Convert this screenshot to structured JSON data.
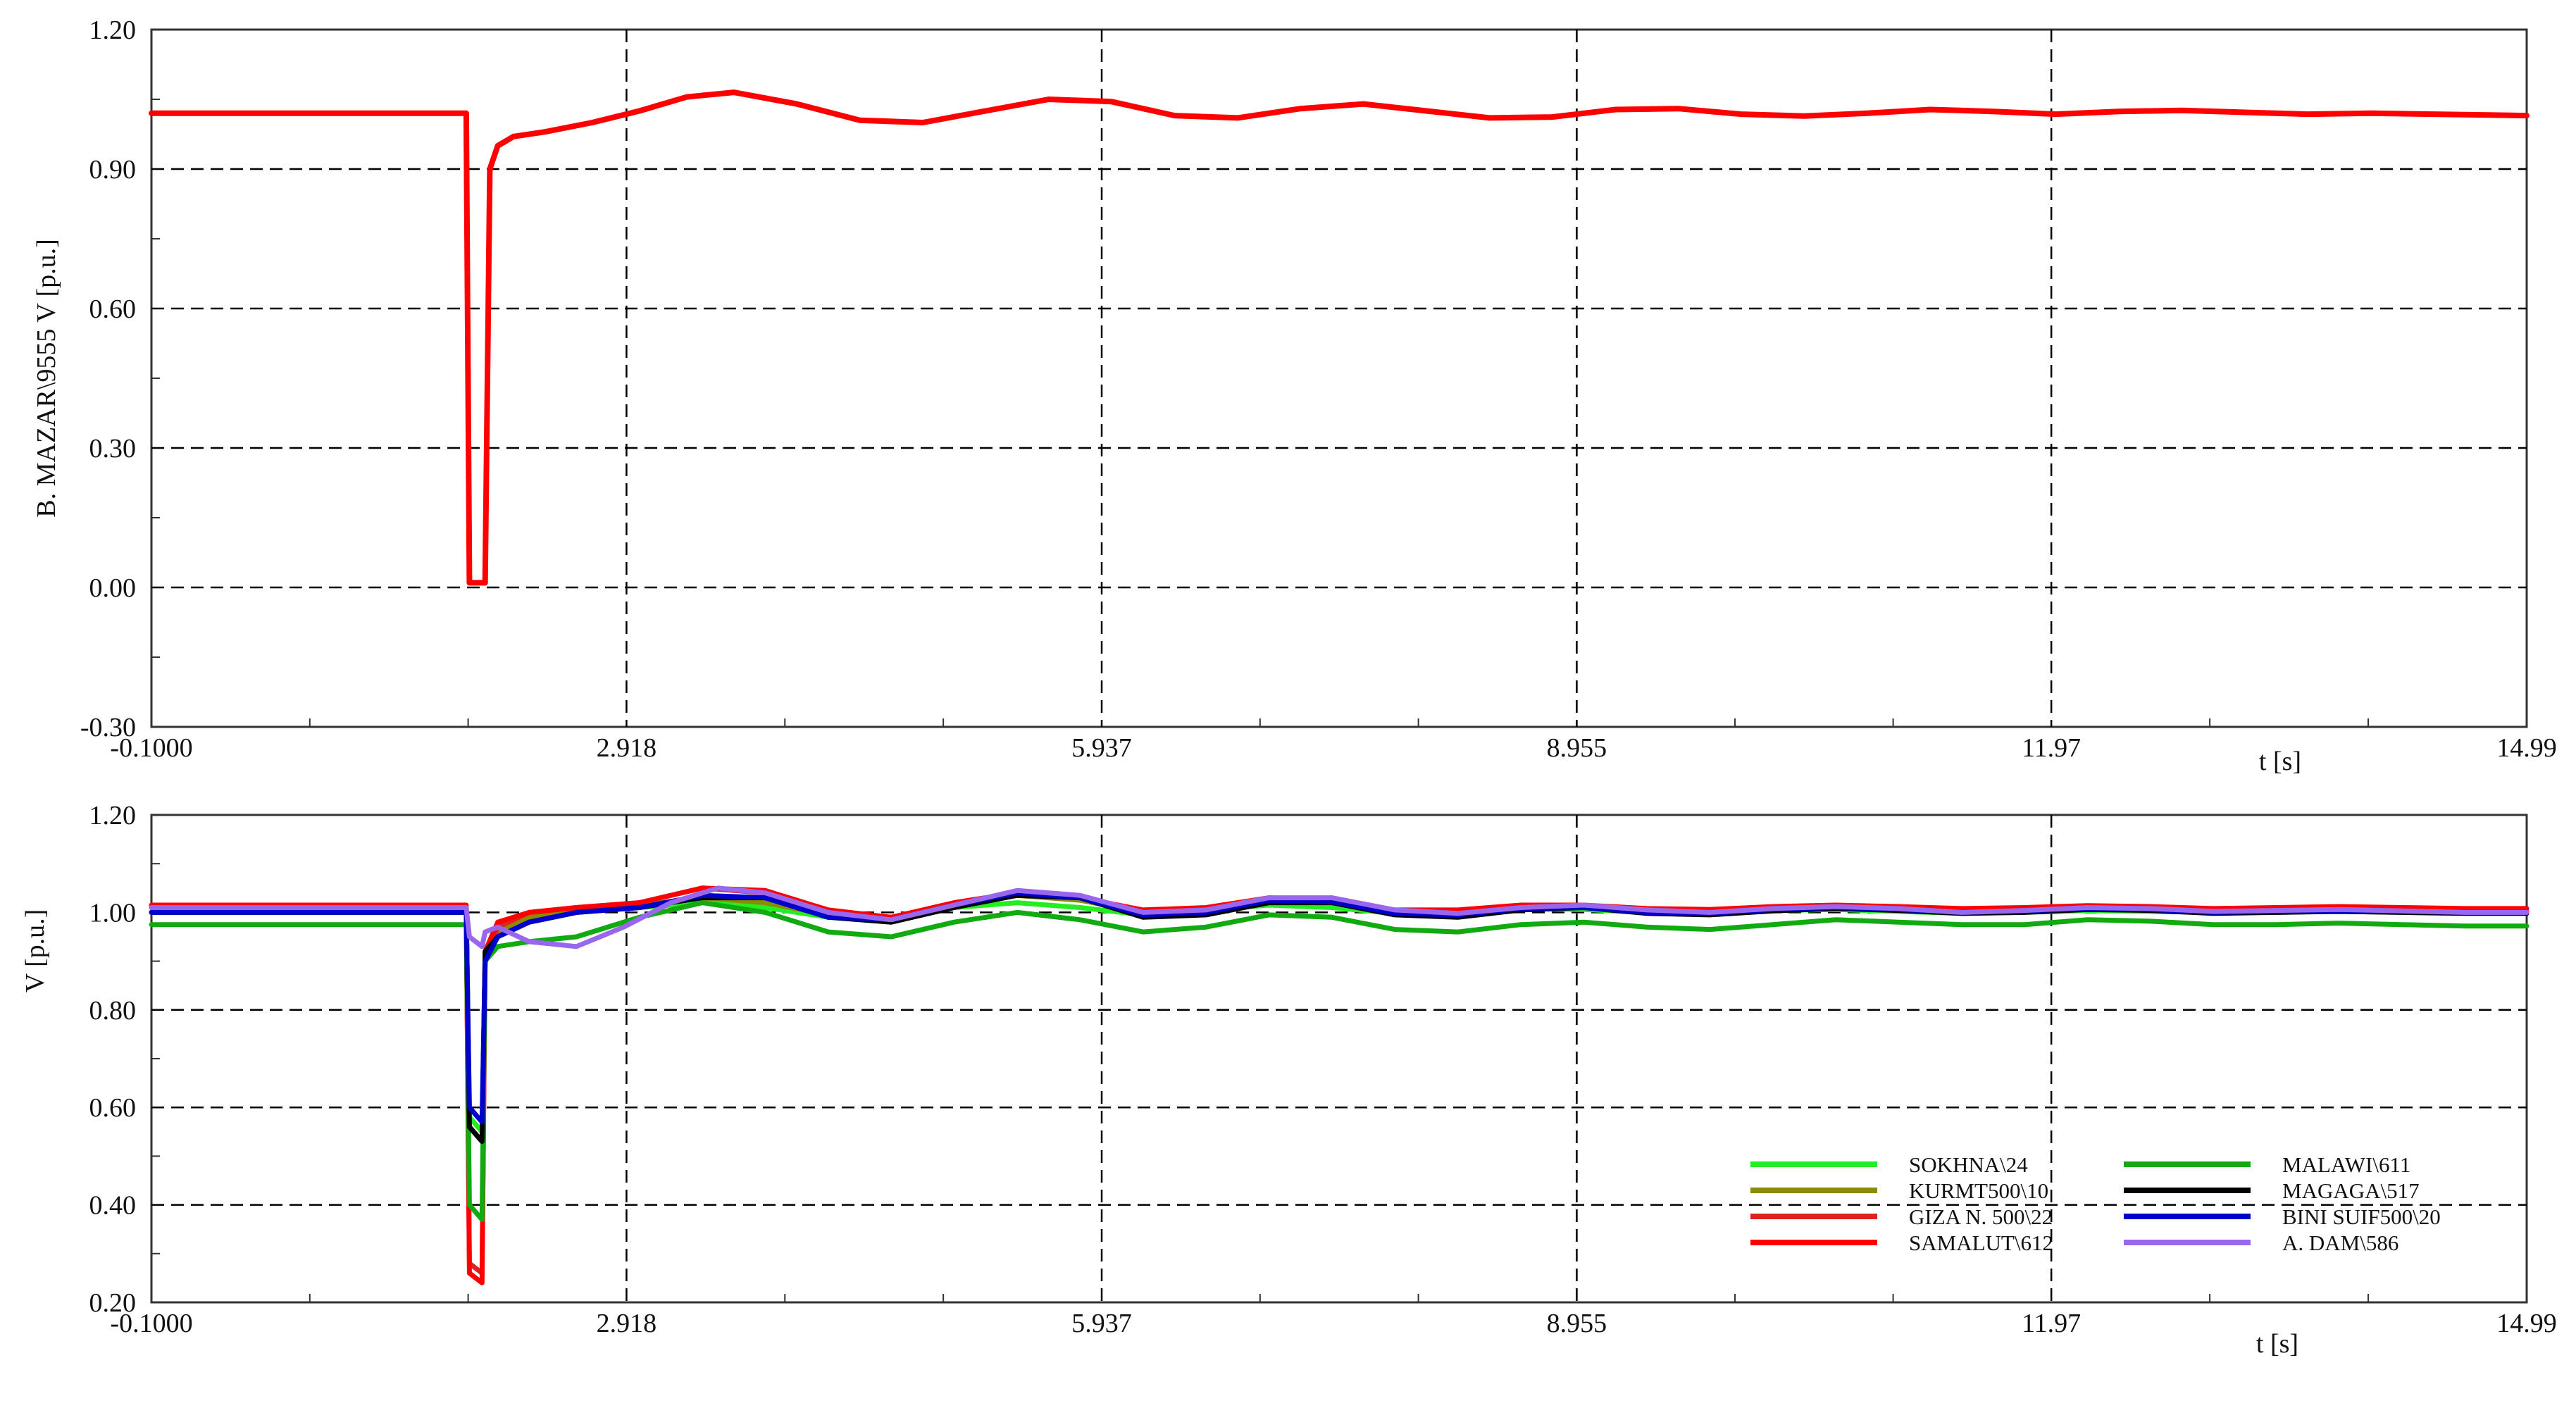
{
  "chart_data": [
    {
      "type": "line",
      "ylabel": "B. MAZAR\\9555 V [p.u.]",
      "xlabel": "t [s]",
      "xlim": [
        -0.1,
        14.99
      ],
      "ylim": [
        -0.3,
        1.2
      ],
      "xticks": [
        -0.1,
        2.918,
        5.937,
        8.955,
        11.97,
        14.99
      ],
      "xtick_labels": [
        "-0.1000",
        "2.918",
        "5.937",
        "8.955",
        "11.97",
        "14.99"
      ],
      "yticks": [
        -0.3,
        0.0,
        0.3,
        0.6,
        0.9,
        1.2
      ],
      "ytick_labels": [
        "-0.30",
        "0.00",
        "0.30",
        "0.60",
        "0.90",
        "1.20"
      ],
      "grid": true,
      "series": [
        {
          "color": "#ff0000",
          "x": [
            -0.1,
            1.9,
            1.92,
            2.0,
            2.02,
            2.05,
            2.1,
            2.2,
            2.4,
            2.7,
            3.0,
            3.3,
            3.6,
            4.0,
            4.4,
            4.8,
            5.2,
            5.6,
            6.0,
            6.4,
            6.8,
            7.2,
            7.6,
            8.0,
            8.4,
            8.8,
            9.2,
            9.6,
            10.0,
            10.4,
            10.8,
            11.2,
            11.6,
            12.0,
            12.4,
            12.8,
            13.2,
            13.6,
            14.0,
            14.4,
            14.99
          ],
          "y": [
            1.02,
            1.02,
            0.01,
            0.01,
            0.01,
            0.9,
            0.95,
            0.97,
            0.98,
            1.0,
            1.025,
            1.055,
            1.065,
            1.04,
            1.005,
            1.0,
            1.025,
            1.05,
            1.045,
            1.015,
            1.01,
            1.03,
            1.04,
            1.025,
            1.01,
            1.012,
            1.028,
            1.03,
            1.018,
            1.014,
            1.02,
            1.028,
            1.024,
            1.018,
            1.024,
            1.026,
            1.022,
            1.018,
            1.02,
            1.018,
            1.015
          ]
        }
      ]
    },
    {
      "type": "line",
      "ylabel": "V [p.u.]",
      "xlabel": "t [s]",
      "xlim": [
        -0.1,
        14.99
      ],
      "ylim": [
        0.2,
        1.2
      ],
      "xticks": [
        -0.1,
        2.918,
        5.937,
        8.955,
        11.97,
        14.99
      ],
      "xtick_labels": [
        "-0.1000",
        "2.918",
        "5.937",
        "8.955",
        "11.97",
        "14.99"
      ],
      "yticks": [
        0.2,
        0.4,
        0.6,
        0.8,
        1.0,
        1.2
      ],
      "ytick_labels": [
        "0.20",
        "0.40",
        "0.60",
        "0.80",
        "1.00",
        "1.20"
      ],
      "grid": true,
      "legend_position": "bottom-right",
      "series": [
        {
          "name": "SOKHNA\\24",
          "color": "#22ee22",
          "x": [
            -0.1,
            1.9,
            1.92,
            2.0,
            2.02,
            2.1,
            2.3,
            2.6,
            3.0,
            3.4,
            3.8,
            4.2,
            4.6,
            5.0,
            5.4,
            5.8,
            6.2,
            6.6,
            7.0,
            7.4,
            7.8,
            8.2,
            8.6,
            9.0,
            9.4,
            9.8,
            10.2,
            10.6,
            11.0,
            11.4,
            11.8,
            12.2,
            12.6,
            13.0,
            13.4,
            13.8,
            14.2,
            14.6,
            14.99
          ],
          "y": [
            1.0,
            1.0,
            0.58,
            0.55,
            0.9,
            0.96,
            0.99,
            1.0,
            1.01,
            1.02,
            1.01,
            0.99,
            0.99,
            1.01,
            1.02,
            1.01,
            0.995,
            1.005,
            1.015,
            1.01,
            0.998,
            1.0,
            1.008,
            1.006,
            1.0,
            0.998,
            1.004,
            1.006,
            1.002,
            0.998,
            1.0,
            1.004,
            1.002,
            1.0,
            1.0,
            1.002,
            1.0,
            0.999,
            1.0
          ]
        },
        {
          "name": "KURMT500\\10",
          "color": "#8b8b00",
          "x": [
            -0.1,
            1.9,
            1.92,
            2.0,
            2.02,
            2.1,
            2.3,
            2.6,
            3.0,
            3.4,
            3.8,
            4.2,
            4.6,
            5.0,
            5.4,
            5.8,
            6.2,
            6.6,
            7.0,
            7.4,
            7.8,
            8.2,
            8.6,
            9.0,
            9.4,
            9.8,
            10.2,
            10.6,
            11.0,
            11.4,
            11.8,
            12.2,
            12.6,
            13.0,
            13.4,
            13.8,
            14.2,
            14.6,
            14.99
          ],
          "y": [
            1.01,
            1.01,
            0.56,
            0.53,
            0.9,
            0.96,
            0.99,
            1.0,
            1.015,
            1.03,
            1.02,
            0.995,
            0.99,
            1.015,
            1.035,
            1.025,
            1.0,
            1.005,
            1.025,
            1.02,
            1.0,
            1.0,
            1.012,
            1.01,
            1.002,
            1.0,
            1.006,
            1.008,
            1.004,
            1.0,
            1.004,
            1.008,
            1.004,
            1.0,
            1.003,
            1.004,
            1.001,
            1.0,
            1.0
          ]
        },
        {
          "name": "GIZA N. 500\\22",
          "color": "#dd2222",
          "x": [
            -0.1,
            1.9,
            1.92,
            2.0,
            2.02,
            2.1,
            2.3,
            2.6,
            3.0,
            3.4,
            3.8,
            4.2,
            4.6,
            5.0,
            5.4,
            5.8,
            6.2,
            6.6,
            7.0,
            7.4,
            7.8,
            8.2,
            8.6,
            9.0,
            9.4,
            9.8,
            10.2,
            10.6,
            11.0,
            11.4,
            11.8,
            12.2,
            12.6,
            13.0,
            13.4,
            13.8,
            14.2,
            14.6,
            14.99
          ],
          "y": [
            1.01,
            1.01,
            0.28,
            0.26,
            0.9,
            0.97,
            1.0,
            1.01,
            1.02,
            1.05,
            1.04,
            1.0,
            0.99,
            1.02,
            1.04,
            1.03,
            1.0,
            1.005,
            1.025,
            1.02,
            1.0,
            1.0,
            1.012,
            1.01,
            1.002,
            1.0,
            1.008,
            1.01,
            1.006,
            1.0,
            1.006,
            1.01,
            1.006,
            1.002,
            1.005,
            1.006,
            1.003,
            1.002,
            1.002
          ]
        },
        {
          "name": "SAMALUT\\612",
          "color": "#ff0000",
          "x": [
            -0.1,
            1.9,
            1.92,
            2.0,
            2.02,
            2.1,
            2.3,
            2.6,
            3.0,
            3.4,
            3.8,
            4.2,
            4.6,
            5.0,
            5.4,
            5.8,
            6.2,
            6.6,
            7.0,
            7.4,
            7.8,
            8.2,
            8.6,
            9.0,
            9.4,
            9.8,
            10.2,
            10.6,
            11.0,
            11.4,
            11.8,
            12.2,
            12.6,
            13.0,
            13.4,
            13.8,
            14.2,
            14.6,
            14.99
          ],
          "y": [
            1.015,
            1.015,
            0.26,
            0.24,
            0.92,
            0.98,
            1.0,
            1.01,
            1.02,
            1.05,
            1.045,
            1.005,
            0.99,
            1.02,
            1.04,
            1.03,
            1.005,
            1.01,
            1.03,
            1.025,
            1.005,
            1.005,
            1.015,
            1.015,
            1.008,
            1.006,
            1.012,
            1.015,
            1.012,
            1.008,
            1.01,
            1.014,
            1.012,
            1.008,
            1.01,
            1.012,
            1.01,
            1.008,
            1.008
          ]
        },
        {
          "name": "MALAWI\\611",
          "color": "#11aa11",
          "x": [
            -0.1,
            1.9,
            1.92,
            2.0,
            2.02,
            2.1,
            2.3,
            2.6,
            3.0,
            3.4,
            3.8,
            4.2,
            4.6,
            5.0,
            5.4,
            5.8,
            6.2,
            6.6,
            7.0,
            7.4,
            7.8,
            8.2,
            8.6,
            9.0,
            9.4,
            9.8,
            10.2,
            10.6,
            11.0,
            11.4,
            11.8,
            12.2,
            12.6,
            13.0,
            13.4,
            13.8,
            14.2,
            14.6,
            14.99
          ],
          "y": [
            0.975,
            0.975,
            0.4,
            0.37,
            0.9,
            0.93,
            0.94,
            0.95,
            0.99,
            1.02,
            1.0,
            0.96,
            0.95,
            0.98,
            1.0,
            0.985,
            0.96,
            0.97,
            0.995,
            0.99,
            0.965,
            0.96,
            0.975,
            0.98,
            0.97,
            0.965,
            0.975,
            0.985,
            0.98,
            0.975,
            0.975,
            0.985,
            0.982,
            0.975,
            0.975,
            0.978,
            0.975,
            0.972,
            0.972
          ]
        },
        {
          "name": "MAGAGA\\517",
          "color": "#000000",
          "x": [
            -0.1,
            1.9,
            1.92,
            2.0,
            2.02,
            2.1,
            2.3,
            2.6,
            3.0,
            3.4,
            3.8,
            4.2,
            4.6,
            5.0,
            5.4,
            5.8,
            6.2,
            6.6,
            7.0,
            7.4,
            7.8,
            8.2,
            8.6,
            9.0,
            9.4,
            9.8,
            10.2,
            10.6,
            11.0,
            11.4,
            11.8,
            12.2,
            12.6,
            13.0,
            13.4,
            13.8,
            14.2,
            14.6,
            14.99
          ],
          "y": [
            1.0,
            1.0,
            0.56,
            0.53,
            0.92,
            0.95,
            0.98,
            1.0,
            1.01,
            1.03,
            1.03,
            0.99,
            0.98,
            1.01,
            1.035,
            1.03,
            0.99,
            0.995,
            1.02,
            1.02,
            0.995,
            0.99,
            1.005,
            1.01,
            0.998,
            0.995,
            1.003,
            1.008,
            1.004,
            0.998,
            1.0,
            1.006,
            1.004,
            0.998,
            1.0,
            1.002,
            1.0,
            0.998,
            0.998
          ]
        },
        {
          "name": "BINI SUIF500\\20",
          "color": "#0000cc",
          "x": [
            -0.1,
            1.9,
            1.92,
            2.0,
            2.02,
            2.1,
            2.3,
            2.6,
            3.0,
            3.4,
            3.8,
            4.2,
            4.6,
            5.0,
            5.4,
            5.8,
            6.2,
            6.6,
            7.0,
            7.4,
            7.8,
            8.2,
            8.6,
            9.0,
            9.4,
            9.8,
            10.2,
            10.6,
            11.0,
            11.4,
            11.8,
            12.2,
            12.6,
            13.0,
            13.4,
            13.8,
            14.2,
            14.6,
            14.99
          ],
          "y": [
            1.0,
            1.0,
            0.6,
            0.57,
            0.9,
            0.95,
            0.98,
            1.0,
            1.01,
            1.035,
            1.03,
            0.99,
            0.985,
            1.015,
            1.04,
            1.03,
            0.995,
            1.0,
            1.025,
            1.022,
            0.998,
            0.995,
            1.008,
            1.01,
            1.0,
            0.998,
            1.006,
            1.01,
            1.006,
            1.0,
            1.003,
            1.008,
            1.006,
            1.0,
            1.002,
            1.004,
            1.002,
            1.0,
            1.0
          ]
        },
        {
          "name": "A. DAM\\586",
          "color": "#9966ee",
          "x": [
            -0.1,
            1.9,
            1.92,
            2.0,
            2.02,
            2.1,
            2.3,
            2.6,
            2.9,
            3.2,
            3.5,
            3.8,
            4.2,
            4.6,
            5.0,
            5.4,
            5.8,
            6.2,
            6.6,
            7.0,
            7.4,
            7.8,
            8.2,
            8.6,
            9.0,
            9.4,
            9.8,
            10.2,
            10.6,
            11.0,
            11.4,
            11.8,
            12.2,
            12.6,
            13.0,
            13.4,
            13.8,
            14.2,
            14.6,
            14.99
          ],
          "y": [
            1.01,
            1.01,
            0.95,
            0.93,
            0.96,
            0.97,
            0.94,
            0.93,
            0.97,
            1.02,
            1.05,
            1.04,
            1.0,
            0.985,
            1.015,
            1.045,
            1.035,
            1.0,
            1.005,
            1.03,
            1.03,
            1.005,
            0.998,
            1.01,
            1.015,
            1.005,
            1.0,
            1.008,
            1.012,
            1.008,
            1.0,
            1.004,
            1.01,
            1.008,
            1.002,
            1.004,
            1.006,
            1.003,
            1.0,
            1.0
          ]
        }
      ]
    }
  ]
}
